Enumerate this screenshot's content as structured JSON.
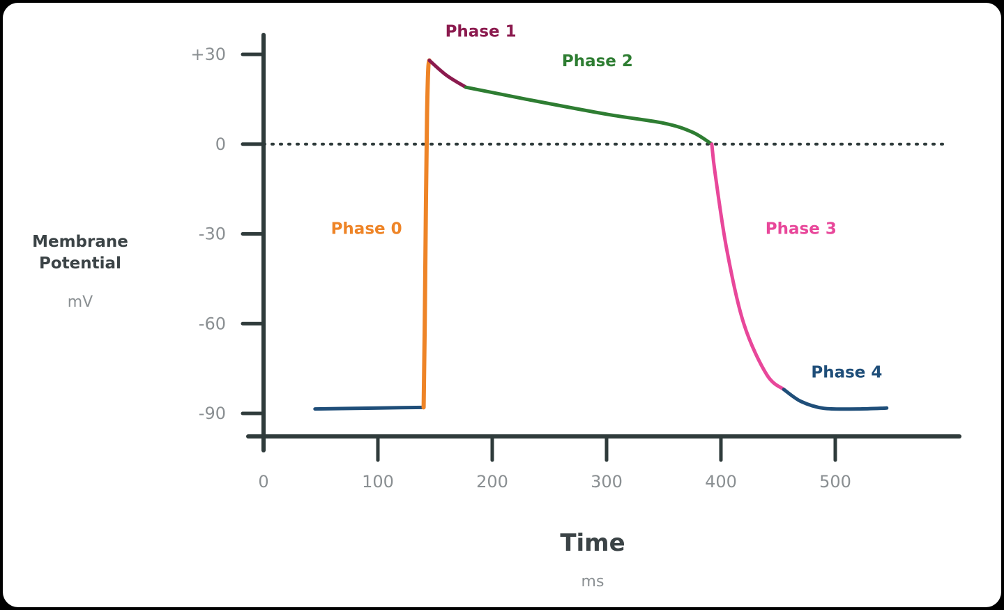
{
  "chart_data": {
    "type": "line",
    "xlabel": "Time",
    "xunit": "ms",
    "ylabel_lines": [
      "Membrane",
      "Potential"
    ],
    "yunit": "mV",
    "xlim": [
      0,
      600
    ],
    "ylim": [
      -95,
      35
    ],
    "x_ticks": [
      {
        "value": 0,
        "label": "0"
      },
      {
        "value": 100,
        "label": "100"
      },
      {
        "value": 200,
        "label": "200"
      },
      {
        "value": 300,
        "label": "300"
      },
      {
        "value": 400,
        "label": "400"
      },
      {
        "value": 500,
        "label": "500"
      }
    ],
    "y_ticks": [
      {
        "value": 30,
        "label": "+30"
      },
      {
        "value": 0,
        "label": "0"
      },
      {
        "value": -30,
        "label": "-30"
      },
      {
        "value": -60,
        "label": "-60"
      },
      {
        "value": -90,
        "label": "-90"
      }
    ],
    "reference_line": {
      "y": 0,
      "style": "dotted"
    },
    "grid": false,
    "legend": "none",
    "axis_color": "#2f3b3b",
    "series": [
      {
        "name": "Phase 4",
        "color": "#1f4e79",
        "x": [
          45,
          80,
          120,
          140
        ],
        "y": [
          -88.5,
          -88.3,
          -88.1,
          -88
        ]
      },
      {
        "name": "Phase 0",
        "color": "#ee8427",
        "x": [
          140,
          141,
          142,
          143,
          144,
          145
        ],
        "y": [
          -88,
          -60,
          -20,
          10,
          25,
          28
        ]
      },
      {
        "name": "Phase 1",
        "color": "#8b1a4e",
        "x": [
          145,
          160,
          177
        ],
        "y": [
          28,
          23,
          19
        ]
      },
      {
        "name": "Phase 2",
        "color": "#2e7d32",
        "x": [
          177,
          230,
          300,
          350,
          375,
          392
        ],
        "y": [
          19,
          15,
          10,
          7,
          4,
          0
        ]
      },
      {
        "name": "Phase 3",
        "color": "#e8479a",
        "x": [
          392,
          395,
          405,
          420,
          440,
          455
        ],
        "y": [
          0,
          -10,
          -35,
          -60,
          -77,
          -82
        ]
      },
      {
        "name": "Phase 4",
        "color": "#1f4e79",
        "x": [
          455,
          470,
          490,
          520,
          545
        ],
        "y": [
          -82,
          -86,
          -88.3,
          -88.5,
          -88.2
        ]
      }
    ],
    "annotations": [
      {
        "text": "Phase 0",
        "x": 90,
        "y": -30,
        "color": "#ee8427"
      },
      {
        "text": "Phase 1",
        "x": 190,
        "y": 36,
        "color": "#8b1a4e"
      },
      {
        "text": "Phase 2",
        "x": 292,
        "y": 26,
        "color": "#2e7d32"
      },
      {
        "text": "Phase 3",
        "x": 470,
        "y": -30,
        "color": "#e8479a"
      },
      {
        "text": "Phase 4",
        "x": 510,
        "y": -78,
        "color": "#1f4e79"
      }
    ]
  }
}
